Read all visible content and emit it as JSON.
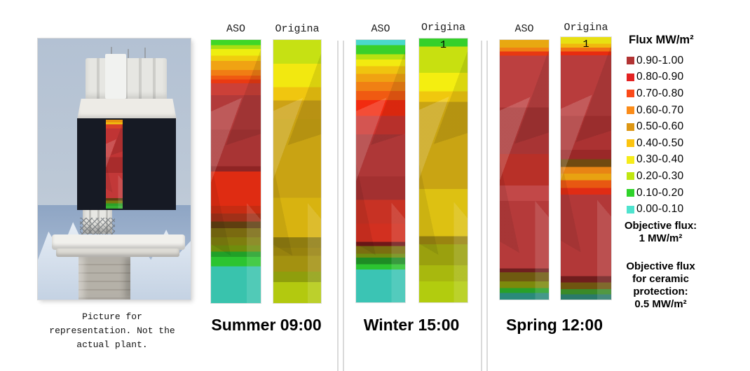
{
  "figure": {
    "photo_caption": "Picture for\nrepresentation. Not the\nactual plant.",
    "photo_overlay": {
      "stops": [
        [
          "#e8920f",
          0,
          3
        ],
        [
          "#f0c40e",
          3,
          5
        ],
        [
          "#d84028",
          5,
          10
        ],
        [
          "#c03434",
          10,
          42
        ],
        [
          "#a82c2c",
          42,
          60
        ],
        [
          "#c23838",
          60,
          88
        ],
        [
          "#5f3e10",
          88,
          91
        ],
        [
          "#7a7a10",
          91,
          94
        ],
        [
          "#2da028",
          94,
          97
        ],
        [
          "#35b030",
          97,
          100
        ]
      ]
    }
  },
  "legend": {
    "title": "Flux MW/m²",
    "entries": [
      {
        "label": "0.90-1.00",
        "color": "#b23434"
      },
      {
        "label": "0.80-0.90",
        "color": "#e32222"
      },
      {
        "label": "0.70-0.80",
        "color": "#fb4a19"
      },
      {
        "label": "0.60-0.70",
        "color": "#fb8c19"
      },
      {
        "label": "0.50-0.60",
        "color": "#dd9715"
      },
      {
        "label": "0.40-0.50",
        "color": "#fcc40f"
      },
      {
        "label": "0.30-0.40",
        "color": "#f6ec1a"
      },
      {
        "label": "0.20-0.30",
        "color": "#c0e611"
      },
      {
        "label": "0.10-0.20",
        "color": "#2fd32a"
      },
      {
        "label": "0.00-0.10",
        "color": "#4fe3ce"
      }
    ],
    "objective_flux": "Objective flux:\n1 MW/m²",
    "objective_flux_ceramic": "Objective flux\nfor ceramic\nprotection:\n0.5 MW/m²"
  },
  "chart_data": {
    "type": "heatmap",
    "title": "Receiver flux maps: ASO vs Original",
    "unit": "MW/m²",
    "flux_bins": [
      {
        "range": [
          0.9,
          1.0
        ],
        "color": "#b23434"
      },
      {
        "range": [
          0.8,
          0.9
        ],
        "color": "#e32222"
      },
      {
        "range": [
          0.7,
          0.8
        ],
        "color": "#fb4a19"
      },
      {
        "range": [
          0.6,
          0.7
        ],
        "color": "#fb8c19"
      },
      {
        "range": [
          0.5,
          0.6
        ],
        "color": "#dd9715"
      },
      {
        "range": [
          0.4,
          0.5
        ],
        "color": "#fcc40f"
      },
      {
        "range": [
          0.3,
          0.4
        ],
        "color": "#f6ec1a"
      },
      {
        "range": [
          0.2,
          0.3
        ],
        "color": "#c0e611"
      },
      {
        "range": [
          0.1,
          0.2
        ],
        "color": "#2fd32a"
      },
      {
        "range": [
          0.0,
          0.1
        ],
        "color": "#4fe3ce"
      }
    ],
    "panels": [
      {
        "label": "Summer 09:00",
        "columns": [
          {
            "header": "ASO",
            "stops": [
              [
                "#3fd727",
                0,
                2
              ],
              [
                "#aadf12",
                2,
                3.5
              ],
              [
                "#eeee10",
                3.5,
                6
              ],
              [
                "#f0cd0e",
                6,
                8
              ],
              [
                "#f0a313",
                8,
                11.5
              ],
              [
                "#f07d14",
                11.5,
                13.5
              ],
              [
                "#ef5a11",
                13.5,
                15
              ],
              [
                "#ea3a12",
                15,
                16.5
              ],
              [
                "#cc4038",
                16.5,
                21
              ],
              [
                "#b23a3a",
                21,
                34
              ],
              [
                "#a83434",
                34,
                48
              ],
              [
                "#8f2424",
                48,
                50
              ],
              [
                "#df2c12",
                50,
                63
              ],
              [
                "#c72c12",
                63,
                66
              ],
              [
                "#a03018",
                66,
                69
              ],
              [
                "#5f3e10",
                69,
                71.5
              ],
              [
                "#7a6a10",
                71.5,
                75
              ],
              [
                "#7e7e0e",
                75,
                78
              ],
              [
                "#6f8d0c",
                78,
                80.5
              ],
              [
                "#21a028",
                80.5,
                82.5
              ],
              [
                "#2cc430",
                82.5,
                86
              ],
              [
                "#39c3ad",
                86,
                100
              ]
            ]
          },
          {
            "header": "Origina",
            "stops": [
              [
                "#c6e113",
                0,
                9
              ],
              [
                "#f2e810",
                9,
                18
              ],
              [
                "#f0c60f",
                18,
                23
              ],
              [
                "#cda215",
                23,
                30
              ],
              [
                "#c9a313",
                30,
                60
              ],
              [
                "#d8b310",
                60,
                75
              ],
              [
                "#8f7c10",
                75,
                79
              ],
              [
                "#97820e",
                79,
                82
              ],
              [
                "#a39110",
                82,
                88
              ],
              [
                "#8f9e0c",
                88,
                92
              ],
              [
                "#b3c90f",
                92,
                100
              ]
            ]
          }
        ]
      },
      {
        "label": "Winter 15:00",
        "columns": [
          {
            "header": "ASO",
            "stops": [
              [
                "#4ad9cb",
                0,
                2
              ],
              [
                "#3ad02a",
                2,
                5.5
              ],
              [
                "#b8e211",
                5.5,
                7.5
              ],
              [
                "#f2ea10",
                7.5,
                10
              ],
              [
                "#f0c40f",
                10,
                13
              ],
              [
                "#f0a212",
                13,
                16
              ],
              [
                "#f08014",
                16,
                19.5
              ],
              [
                "#f05a12",
                19.5,
                23
              ],
              [
                "#f22b10",
                23,
                29
              ],
              [
                "#cc3530",
                29,
                36
              ],
              [
                "#ae3737",
                36,
                52
              ],
              [
                "#a33030",
                52,
                61
              ],
              [
                "#c83224",
                61,
                70
              ],
              [
                "#d23020",
                70,
                77
              ],
              [
                "#701818",
                77,
                78.5
              ],
              [
                "#7a6e10",
                78.5,
                81.5
              ],
              [
                "#6f8d10",
                81.5,
                83
              ],
              [
                "#1e8c24",
                83,
                85.5
              ],
              [
                "#2cc430",
                85.5,
                87.5
              ],
              [
                "#3bc4b4",
                87.5,
                100
              ]
            ]
          },
          {
            "header": "Origina",
            "marker": "1",
            "stops": [
              [
                "#35d02a",
                0,
                3
              ],
              [
                "#c8e010",
                3,
                13
              ],
              [
                "#f4ee10",
                13,
                20
              ],
              [
                "#f0c80e",
                20,
                24
              ],
              [
                "#c9a413",
                24,
                57
              ],
              [
                "#ddc112",
                57,
                75
              ],
              [
                "#9a8410",
                75,
                78
              ],
              [
                "#9aa00e",
                78,
                86
              ],
              [
                "#a8b80e",
                86,
                92
              ],
              [
                "#b2cc0e",
                92,
                100
              ]
            ]
          }
        ]
      },
      {
        "label": "Spring 12:00",
        "columns": [
          {
            "header": "ASO",
            "stops": [
              [
                "#e8a811",
                0,
                3
              ],
              [
                "#f08014",
                3,
                4.5
              ],
              [
                "#e83812",
                4.5,
                6
              ],
              [
                "#bc4040",
                6,
                26
              ],
              [
                "#a83434",
                26,
                44
              ],
              [
                "#b83028",
                44,
                56
              ],
              [
                "#c24848",
                56,
                62
              ],
              [
                "#b53a3a",
                62,
                88
              ],
              [
                "#6f1f1f",
                88,
                89.5
              ],
              [
                "#6f5a10",
                89.5,
                93
              ],
              [
                "#7c8a0c",
                93,
                95.5
              ],
              [
                "#28a028",
                95.5,
                97.5
              ],
              [
                "#2a8a7a",
                97.5,
                100
              ]
            ]
          },
          {
            "header": "Origina",
            "marker": "1",
            "stops": [
              [
                "#e8e012",
                0,
                2.5
              ],
              [
                "#f0b80e",
                2.5,
                4
              ],
              [
                "#f07014",
                4,
                5.5
              ],
              [
                "#e82c10",
                5.5,
                7
              ],
              [
                "#b83c3c",
                7,
                30
              ],
              [
                "#ab3232",
                30,
                43
              ],
              [
                "#9a2828",
                43,
                46.5
              ],
              [
                "#6f4a10",
                46.5,
                49.5
              ],
              [
                "#e88414",
                49.5,
                52
              ],
              [
                "#e8a211",
                52,
                54.5
              ],
              [
                "#e85812",
                54.5,
                57.5
              ],
              [
                "#e02c14",
                57.5,
                60
              ],
              [
                "#b23838",
                60,
                91
              ],
              [
                "#701d1d",
                91,
                93.5
              ],
              [
                "#6f5510",
                93.5,
                96
              ],
              [
                "#3a8a28",
                96,
                98
              ],
              [
                "#2a7a6a",
                98,
                100
              ]
            ]
          }
        ]
      }
    ]
  }
}
